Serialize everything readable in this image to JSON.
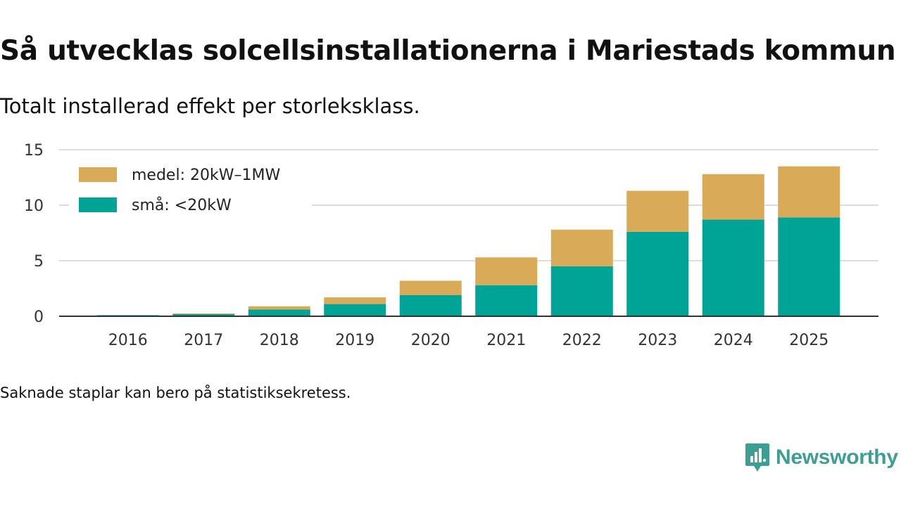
{
  "header": {
    "title": "Så utvecklas solcellsinstallationerna i Mariestads kommun",
    "subtitle": "Totalt installerad effekt per storleksklass."
  },
  "footer": {
    "note": "Saknade staplar kan bero på statistiksekretess.",
    "brand": "Newsworthy"
  },
  "colors": {
    "small": "#00a497",
    "medium": "#d9ab58",
    "grid": "#dddddd",
    "axis": "#333333",
    "brand": "#3d9e92"
  },
  "chart_data": {
    "type": "bar",
    "stacked": true,
    "title": "Så utvecklas solcellsinstallationerna i Mariestads kommun",
    "subtitle": "Totalt installerad effekt per storleksklass.",
    "xlabel": "",
    "ylabel": "",
    "ylim": [
      0,
      15
    ],
    "yticks": [
      0,
      5,
      10,
      15
    ],
    "grid": true,
    "legend_position": "top-left",
    "categories": [
      "2016",
      "2017",
      "2018",
      "2019",
      "2020",
      "2021",
      "2022",
      "2023",
      "2024",
      "2025"
    ],
    "series": [
      {
        "name": "små: <20kW",
        "color": "#00a497",
        "values": [
          0.1,
          0.2,
          0.6,
          1.1,
          1.9,
          2.8,
          4.5,
          7.6,
          8.7,
          8.9
        ]
      },
      {
        "name": "medel: 20kW–1MW",
        "color": "#d9ab58",
        "values": [
          0.0,
          0.05,
          0.3,
          0.6,
          1.3,
          2.5,
          3.3,
          3.7,
          4.1,
          4.6
        ]
      }
    ]
  }
}
